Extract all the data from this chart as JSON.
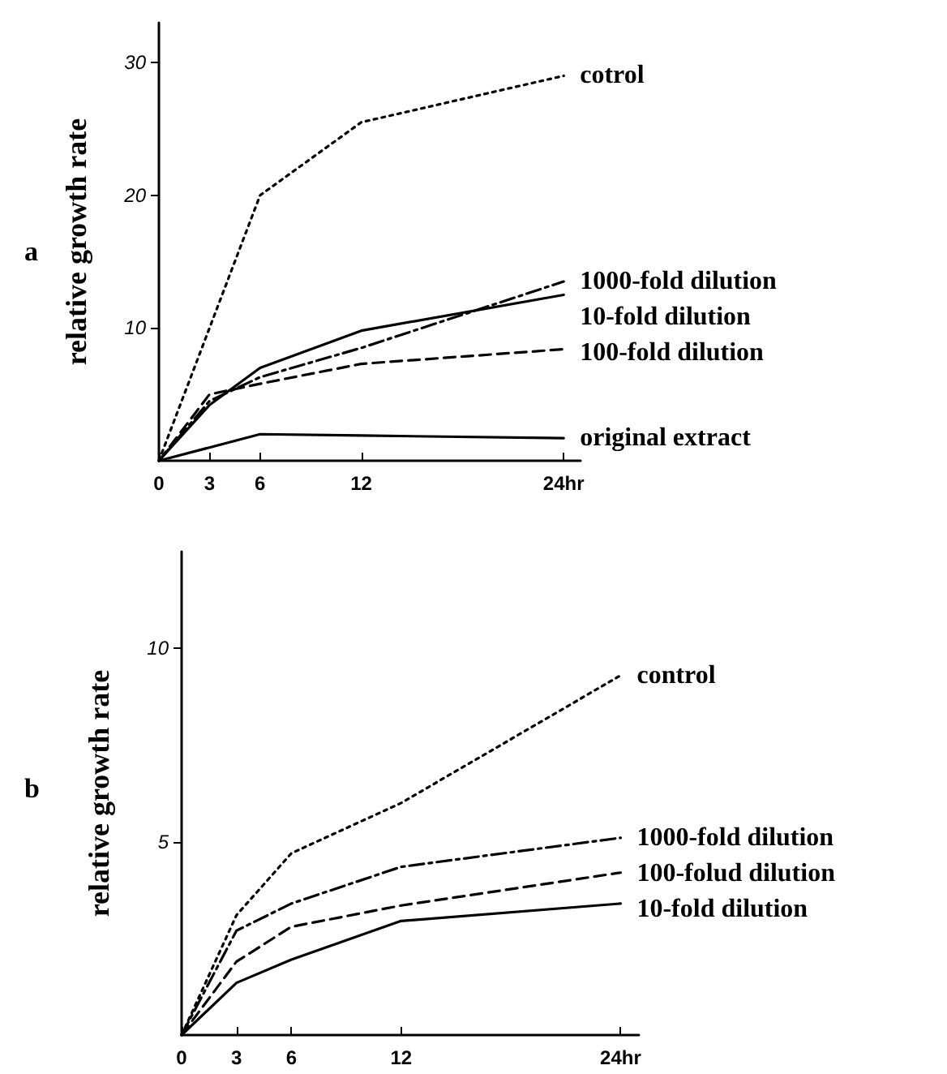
{
  "chart_data": [
    {
      "type": "line",
      "title": "a",
      "ylabel": "relative growth rate",
      "x": [
        0,
        3,
        6,
        12,
        24
      ],
      "xlim": [
        0,
        25
      ],
      "xticks": [
        0,
        3,
        6,
        12,
        {
          "value": 24,
          "label": "24hr"
        }
      ],
      "ylim": [
        0,
        33
      ],
      "yticks": [
        10,
        20,
        30
      ],
      "grid": false,
      "legend": false,
      "marker": "none",
      "series": [
        {
          "name": "cotrol",
          "color": "#000000",
          "line_style": "dotted",
          "x": [
            0,
            6,
            12,
            24
          ],
          "values": [
            0,
            20,
            25.5,
            29
          ]
        },
        {
          "name": "1000-fold dilution",
          "color": "#000000",
          "line_style": "dashdot",
          "values": [
            0,
            4.5,
            6.3,
            8.5,
            13.5
          ]
        },
        {
          "name": "10-fold dilution",
          "color": "#000000",
          "line_style": "solid",
          "values": [
            0,
            4.2,
            7,
            9.8,
            12.5
          ]
        },
        {
          "name": "100-fold dilution",
          "color": "#000000",
          "line_style": "dashed",
          "values": [
            0,
            5,
            5.8,
            7.3,
            8.4
          ]
        },
        {
          "name": "original extract",
          "color": "#000000",
          "line_style": "solid",
          "x": [
            0,
            6,
            12,
            24
          ],
          "values": [
            0,
            2,
            1.9,
            1.7
          ]
        }
      ]
    },
    {
      "type": "line",
      "title": "b",
      "ylabel": "relative growth rate",
      "x": [
        0,
        3,
        6,
        12,
        24
      ],
      "xlim": [
        0,
        25
      ],
      "xticks": [
        0,
        3,
        6,
        12,
        {
          "value": 24,
          "label": "24hr"
        }
      ],
      "ylim": [
        0,
        12.5
      ],
      "yticks": [
        5,
        10
      ],
      "grid": false,
      "legend": false,
      "marker": "none",
      "series": [
        {
          "name": "control",
          "color": "#000000",
          "line_style": "dotted",
          "values": [
            0,
            3.1,
            4.7,
            6.0,
            9.3
          ]
        },
        {
          "name": "1000-fold dilution",
          "color": "#000000",
          "line_style": "dashdot",
          "values": [
            0,
            2.7,
            3.4,
            4.35,
            5.1
          ]
        },
        {
          "name": "100-folud dilution",
          "color": "#000000",
          "line_style": "dashed",
          "values": [
            0,
            1.9,
            2.8,
            3.35,
            4.2
          ]
        },
        {
          "name": "10-fold dilution",
          "color": "#000000",
          "line_style": "solid",
          "values": [
            0,
            1.35,
            1.95,
            2.95,
            3.4
          ]
        }
      ]
    }
  ]
}
